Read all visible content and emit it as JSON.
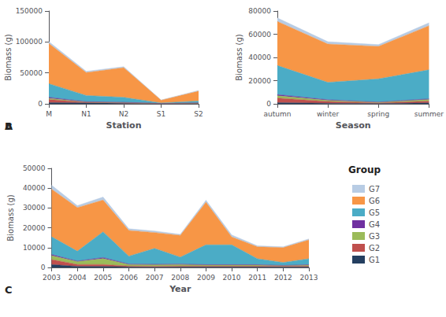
{
  "chart_data": [
    {
      "type": "area",
      "stacked": true,
      "grid": false,
      "annotations": [
        "A"
      ],
      "xlabel": "Station",
      "ylabel": "Biomass (g)",
      "categories": [
        "M",
        "N1",
        "N2",
        "S1",
        "S2"
      ],
      "ylim": [
        0,
        150000
      ],
      "yticks": [
        0,
        50000,
        100000,
        150000
      ],
      "series": [
        {
          "name": "G1",
          "color": "#243F60",
          "values": [
            2000,
            1500,
            1000,
            300,
            500
          ]
        },
        {
          "name": "G2",
          "color": "#C0504D",
          "values": [
            5000,
            1000,
            500,
            100,
            500
          ]
        },
        {
          "name": "G3",
          "color": "#9BBB59",
          "values": [
            2000,
            500,
            500,
            100,
            300
          ]
        },
        {
          "name": "G4",
          "color": "#7030A0",
          "values": [
            1500,
            500,
            500,
            100,
            300
          ]
        },
        {
          "name": "G5",
          "color": "#4BACC6",
          "values": [
            22000,
            10000,
            8000,
            800,
            3000
          ]
        },
        {
          "name": "G6",
          "color": "#F79646",
          "values": [
            65000,
            37000,
            48000,
            4500,
            16000
          ]
        },
        {
          "name": "G7",
          "color": "#B8CCE4",
          "values": [
            3000,
            2000,
            1500,
            200,
            1000
          ]
        }
      ]
    },
    {
      "type": "area",
      "stacked": true,
      "grid": false,
      "annotations": [
        "B"
      ],
      "xlabel": "Season",
      "ylabel": "Biomass (g)",
      "categories": [
        "autumn",
        "winter",
        "spring",
        "summer"
      ],
      "ylim": [
        0,
        80000
      ],
      "yticks": [
        0,
        20000,
        40000,
        60000,
        80000
      ],
      "series": [
        {
          "name": "G1",
          "color": "#243F60",
          "values": [
            1000,
            500,
            300,
            800
          ]
        },
        {
          "name": "G2",
          "color": "#C0504D",
          "values": [
            4000,
            1500,
            500,
            1500
          ]
        },
        {
          "name": "G3",
          "color": "#9BBB59",
          "values": [
            2000,
            1000,
            500,
            1500
          ]
        },
        {
          "name": "G4",
          "color": "#7030A0",
          "values": [
            1000,
            500,
            200,
            500
          ]
        },
        {
          "name": "G5",
          "color": "#4BACC6",
          "values": [
            25000,
            15000,
            20000,
            25000
          ]
        },
        {
          "name": "G6",
          "color": "#F79646",
          "values": [
            38000,
            33000,
            28000,
            38000
          ]
        },
        {
          "name": "G7",
          "color": "#B8CCE4",
          "values": [
            3000,
            2000,
            1500,
            2500
          ]
        }
      ]
    },
    {
      "type": "area",
      "stacked": true,
      "grid": false,
      "annotations": [
        "C",
        "Group"
      ],
      "legend": "right",
      "xlabel": "Year",
      "ylabel": "Biomass (g)",
      "categories": [
        "2003",
        "2004",
        "2005",
        "2006",
        "2007",
        "2008",
        "2009",
        "2010",
        "2011",
        "2012",
        "2013"
      ],
      "ylim": [
        0,
        50000
      ],
      "yticks": [
        0,
        10000,
        20000,
        30000,
        40000,
        50000
      ],
      "series": [
        {
          "name": "G1",
          "color": "#243F60",
          "values": [
            1500,
            500,
            500,
            300,
            200,
            300,
            300,
            300,
            300,
            300,
            300
          ]
        },
        {
          "name": "G2",
          "color": "#C0504D",
          "values": [
            2500,
            1000,
            1000,
            400,
            400,
            400,
            400,
            400,
            400,
            300,
            400
          ]
        },
        {
          "name": "G3",
          "color": "#9BBB59",
          "values": [
            2000,
            1500,
            3000,
            800,
            800,
            800,
            500,
            500,
            500,
            300,
            500
          ]
        },
        {
          "name": "G4",
          "color": "#7030A0",
          "values": [
            500,
            200,
            500,
            200,
            200,
            200,
            200,
            200,
            200,
            100,
            200
          ]
        },
        {
          "name": "G5",
          "color": "#4BACC6",
          "values": [
            9000,
            5000,
            13000,
            4000,
            8000,
            3500,
            10000,
            10000,
            3000,
            1500,
            3000
          ]
        },
        {
          "name": "G6",
          "color": "#F79646",
          "values": [
            24000,
            22000,
            16000,
            13000,
            8000,
            11000,
            21500,
            4000,
            6000,
            7500,
            9500
          ]
        },
        {
          "name": "G7",
          "color": "#B8CCE4",
          "values": [
            2000,
            1000,
            1500,
            800,
            800,
            500,
            1000,
            1000,
            500,
            400,
            500
          ]
        }
      ]
    }
  ]
}
